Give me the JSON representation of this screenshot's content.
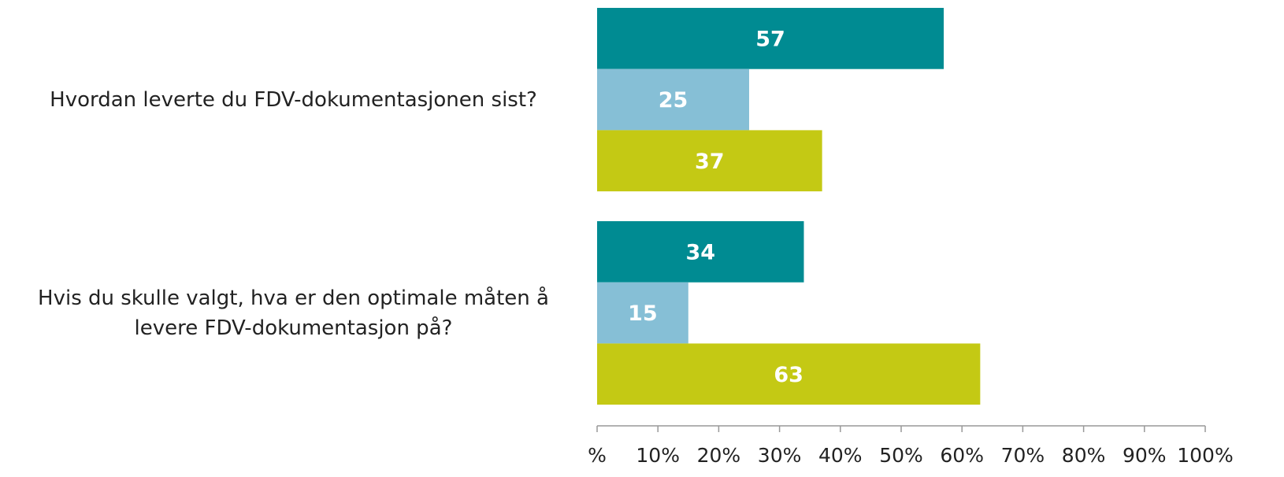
{
  "chart_data": {
    "type": "hbar",
    "categories": [
      "Hvordan leverte du FDV-dokumentasjonen sist?",
      "Hvis du skulle valgt, hva er den optimale måten å levere FDV-dokumentasjon på?"
    ],
    "series": [
      {
        "color": "#008b92",
        "values": [
          57,
          34
        ]
      },
      {
        "color": "#86bfd6",
        "values": [
          25,
          15
        ]
      },
      {
        "color": "#c4c914",
        "values": [
          37,
          63
        ]
      }
    ],
    "xlim": [
      0,
      100
    ],
    "xticks": [
      {
        "value": 0,
        "label": "%"
      },
      {
        "value": 10,
        "label": "10%"
      },
      {
        "value": 20,
        "label": "20%"
      },
      {
        "value": 30,
        "label": "30%"
      },
      {
        "value": 40,
        "label": "40%"
      },
      {
        "value": 50,
        "label": "50%"
      },
      {
        "value": 60,
        "label": "60%"
      },
      {
        "value": 70,
        "label": "70%"
      },
      {
        "value": 80,
        "label": "80%"
      },
      {
        "value": 90,
        "label": "90%"
      },
      {
        "value": 100,
        "label": "100%"
      }
    ],
    "grid": false
  }
}
